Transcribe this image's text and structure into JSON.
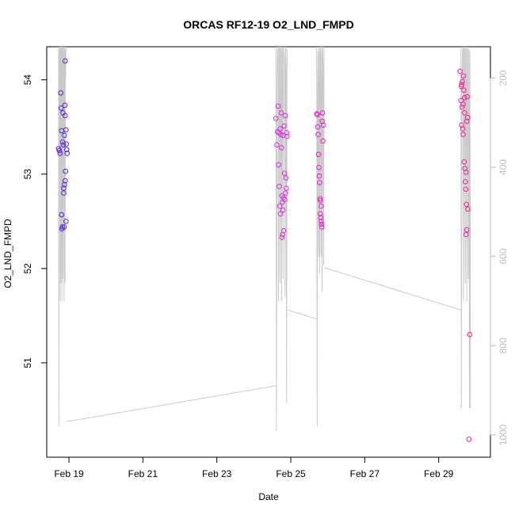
{
  "chart_data": {
    "type": "scatter",
    "title": "ORCAS RF12-19 O2_LND_FMPD",
    "xlabel": "Date",
    "ylabel": "O2_LND_FMPD",
    "xlim": [
      18.4,
      30.4
    ],
    "ylim": [
      50.0,
      54.35
    ],
    "x_ticks": [
      {
        "value": 19,
        "label": "Feb 19"
      },
      {
        "value": 21,
        "label": "Feb 21"
      },
      {
        "value": 23,
        "label": "Feb 23"
      },
      {
        "value": 25,
        "label": "Feb 25"
      },
      {
        "value": 27,
        "label": "Feb 27"
      },
      {
        "value": 29,
        "label": "Feb 29"
      }
    ],
    "y_ticks": [
      {
        "value": 51,
        "label": "51"
      },
      {
        "value": 52,
        "label": "52"
      },
      {
        "value": 53,
        "label": "53"
      },
      {
        "value": 54,
        "label": "54"
      }
    ],
    "right_axis": {
      "color": "#bdbdbd",
      "lim": [
        1050,
        130
      ],
      "ticks": [
        {
          "value": 200,
          "label": "200"
        },
        {
          "value": 400,
          "label": "400"
        },
        {
          "value": 600,
          "label": "600"
        },
        {
          "value": 800,
          "label": "800"
        },
        {
          "value": 1000,
          "label": "1000"
        }
      ]
    },
    "grid": false,
    "legend": "none",
    "series": [
      {
        "color": "#5a22e0",
        "points": [
          [
            18.72,
            53.27
          ],
          [
            18.74,
            53.25
          ],
          [
            18.76,
            53.22
          ],
          [
            18.78,
            53.86
          ],
          [
            18.79,
            53.7
          ],
          [
            18.8,
            53.46
          ],
          [
            18.81,
            52.42
          ],
          [
            18.83,
            53.34
          ],
          [
            18.84,
            53.65
          ],
          [
            18.85,
            53.31
          ],
          [
            18.86,
            52.85
          ],
          [
            18.87,
            52.44
          ],
          [
            18.88,
            53.41
          ],
          [
            18.89,
            53.73
          ],
          [
            18.9,
            53.62
          ],
          [
            18.91,
            53.03
          ],
          [
            18.92,
            53.47
          ],
          [
            18.93,
            53.32
          ],
          [
            18.94,
            53.26
          ],
          [
            18.95,
            53.22
          ],
          [
            18.86,
            52.8
          ],
          [
            18.88,
            52.89
          ],
          [
            18.9,
            52.93
          ],
          [
            18.92,
            52.5
          ],
          [
            18.8,
            52.57
          ],
          [
            18.82,
            52.44
          ],
          [
            18.9,
            54.2
          ]
        ]
      },
      {
        "color": "#d92fe0",
        "points": [
          [
            24.6,
            53.59
          ],
          [
            24.62,
            53.31
          ],
          [
            24.64,
            53.45
          ],
          [
            24.66,
            53.72
          ],
          [
            24.67,
            53.1
          ],
          [
            24.68,
            53.44
          ],
          [
            24.69,
            52.87
          ],
          [
            24.7,
            52.66
          ],
          [
            24.71,
            53.48
          ],
          [
            24.72,
            52.58
          ],
          [
            24.73,
            53.42
          ],
          [
            24.74,
            53.65
          ],
          [
            24.75,
            53.28
          ],
          [
            24.76,
            52.33
          ],
          [
            24.77,
            52.7
          ],
          [
            24.78,
            52.36
          ],
          [
            24.79,
            53.41
          ],
          [
            24.8,
            52.75
          ],
          [
            24.81,
            52.4
          ],
          [
            24.82,
            53.51
          ],
          [
            24.83,
            53.01
          ],
          [
            24.84,
            52.73
          ],
          [
            24.85,
            53.62
          ],
          [
            24.86,
            52.8
          ],
          [
            24.87,
            52.96
          ],
          [
            24.88,
            52.85
          ],
          [
            24.89,
            53.44
          ],
          [
            24.9,
            53.4
          ],
          [
            24.76,
            52.77
          ],
          [
            24.79,
            52.62
          ]
        ]
      },
      {
        "color": "#e81fc8",
        "points": [
          [
            25.7,
            53.64
          ],
          [
            25.72,
            53.63
          ],
          [
            25.73,
            53.5
          ],
          [
            25.74,
            53.42
          ],
          [
            25.75,
            53.21
          ],
          [
            25.76,
            53.07
          ],
          [
            25.77,
            52.98
          ],
          [
            25.78,
            52.91
          ],
          [
            25.79,
            52.74
          ],
          [
            25.8,
            52.58
          ],
          [
            25.81,
            52.54
          ],
          [
            25.82,
            52.5
          ],
          [
            25.83,
            52.47
          ],
          [
            25.84,
            52.44
          ],
          [
            25.85,
            53.56
          ],
          [
            25.86,
            53.65
          ],
          [
            25.87,
            53.35
          ],
          [
            25.88,
            53.52
          ],
          [
            25.8,
            52.72
          ],
          [
            25.82,
            52.66
          ]
        ]
      },
      {
        "color": "#f0209a",
        "points": [
          [
            29.58,
            54.09
          ],
          [
            29.6,
            53.78
          ],
          [
            29.61,
            53.93
          ],
          [
            29.62,
            53.52
          ],
          [
            29.63,
            53.71
          ],
          [
            29.64,
            53.98
          ],
          [
            29.65,
            53.48
          ],
          [
            29.66,
            53.42
          ],
          [
            29.67,
            54.04
          ],
          [
            29.68,
            53.89
          ],
          [
            29.69,
            53.13
          ],
          [
            29.7,
            53.65
          ],
          [
            29.71,
            53.06
          ],
          [
            29.72,
            52.92
          ],
          [
            29.73,
            52.84
          ],
          [
            29.74,
            53.02
          ],
          [
            29.75,
            52.68
          ],
          [
            29.76,
            52.41
          ],
          [
            29.77,
            53.82
          ],
          [
            29.78,
            53.6
          ],
          [
            29.79,
            52.63
          ],
          [
            29.74,
            52.36
          ],
          [
            29.66,
            53.74
          ],
          [
            29.62,
            53.95
          ],
          [
            29.84,
            51.3
          ],
          [
            29.82,
            50.19
          ],
          [
            29.76,
            53.56
          ],
          [
            29.7,
            53.81
          ]
        ]
      }
    ],
    "altitude_trace": {
      "color": "#c8c8c8",
      "segments": [
        {
          "x_start": 18.72,
          "x_end": 18.92,
          "profile": [
            130,
            980,
            210,
            140,
            130,
            700,
            130,
            135,
            660,
            130,
            140,
            700,
            130,
            140,
            650,
            130,
            140,
            170,
            700,
            130,
            180,
            660,
            135,
            200,
            130
          ]
        },
        {
          "x_start": 24.6,
          "x_end": 24.9,
          "profile": [
            130,
            990,
            250,
            140,
            130,
            700,
            130,
            135,
            660,
            130,
            140,
            700,
            130,
            140,
            650,
            130,
            140,
            170,
            690,
            130,
            180,
            930,
            135
          ]
        },
        {
          "x_start": 25.7,
          "x_end": 25.9,
          "profile": [
            130,
            980,
            220,
            140,
            600,
            130,
            640,
            130,
            150,
            600,
            130,
            680,
            130,
            170,
            620,
            130
          ]
        },
        {
          "x_start": 29.6,
          "x_end": 29.86,
          "profile": [
            130,
            940,
            200,
            140,
            130,
            700,
            130,
            135,
            660,
            130,
            140,
            700,
            130,
            140,
            650,
            130,
            940,
            140,
            940
          ]
        }
      ],
      "transits": [
        [
          [
            18.95,
            970
          ],
          [
            24.6,
            890
          ]
        ],
        [
          [
            24.92,
            720
          ],
          [
            25.7,
            740
          ]
        ],
        [
          [
            25.9,
            625
          ],
          [
            29.6,
            720
          ]
        ]
      ]
    }
  }
}
